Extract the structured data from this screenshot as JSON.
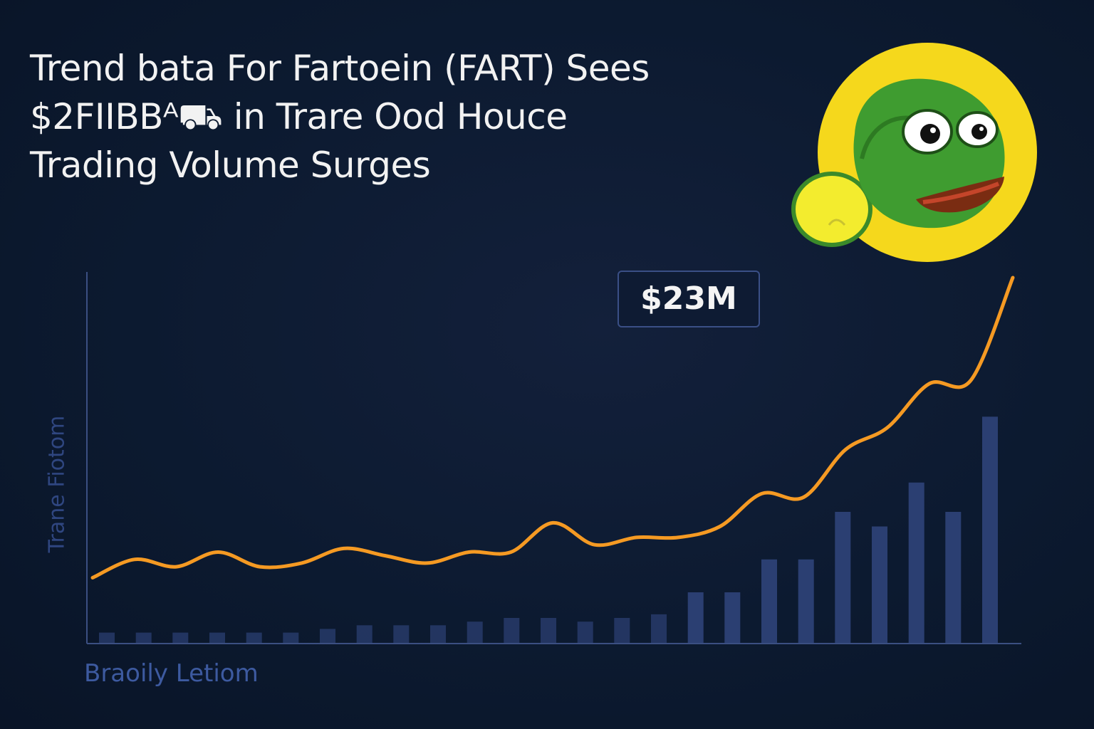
{
  "chart_data": {
    "type": "line",
    "title": "Trend bata For Fartoein (FART) Sees $2FIIBBᴬ⛟ in Trare Ood Houce Trading Volume Surges",
    "title_lines": [
      "Trend bata For Fartoein (FART) Sees",
      "$2FIIBBᴬ⛟ in Trare Ood Houce",
      "Trading Volume Surges"
    ],
    "xlabel": "Braoily Letiom",
    "ylabel": "Trane Fiotom",
    "annotation": "$23M",
    "grid": false,
    "legend": "none",
    "ylim": [
      0,
      100
    ],
    "series": [
      {
        "kind": "line",
        "color": "#f59a23",
        "values": [
          18,
          23,
          21,
          25,
          21,
          22,
          26,
          24,
          22,
          25,
          25,
          33,
          27,
          29,
          29,
          32,
          41,
          40,
          53,
          59,
          71,
          72,
          100
        ]
      },
      {
        "kind": "bar",
        "color": "#2b3f72",
        "values": [
          3,
          3,
          3,
          3,
          3,
          3,
          4,
          5,
          5,
          5,
          6,
          7,
          7,
          6,
          7,
          8,
          14,
          14,
          23,
          23,
          36,
          32,
          44,
          36,
          62
        ]
      }
    ]
  },
  "mascot": {
    "icon": "frog-face-coin-icon",
    "coin_color": "#f5d81c",
    "frog_color": "#3d9a2e"
  }
}
